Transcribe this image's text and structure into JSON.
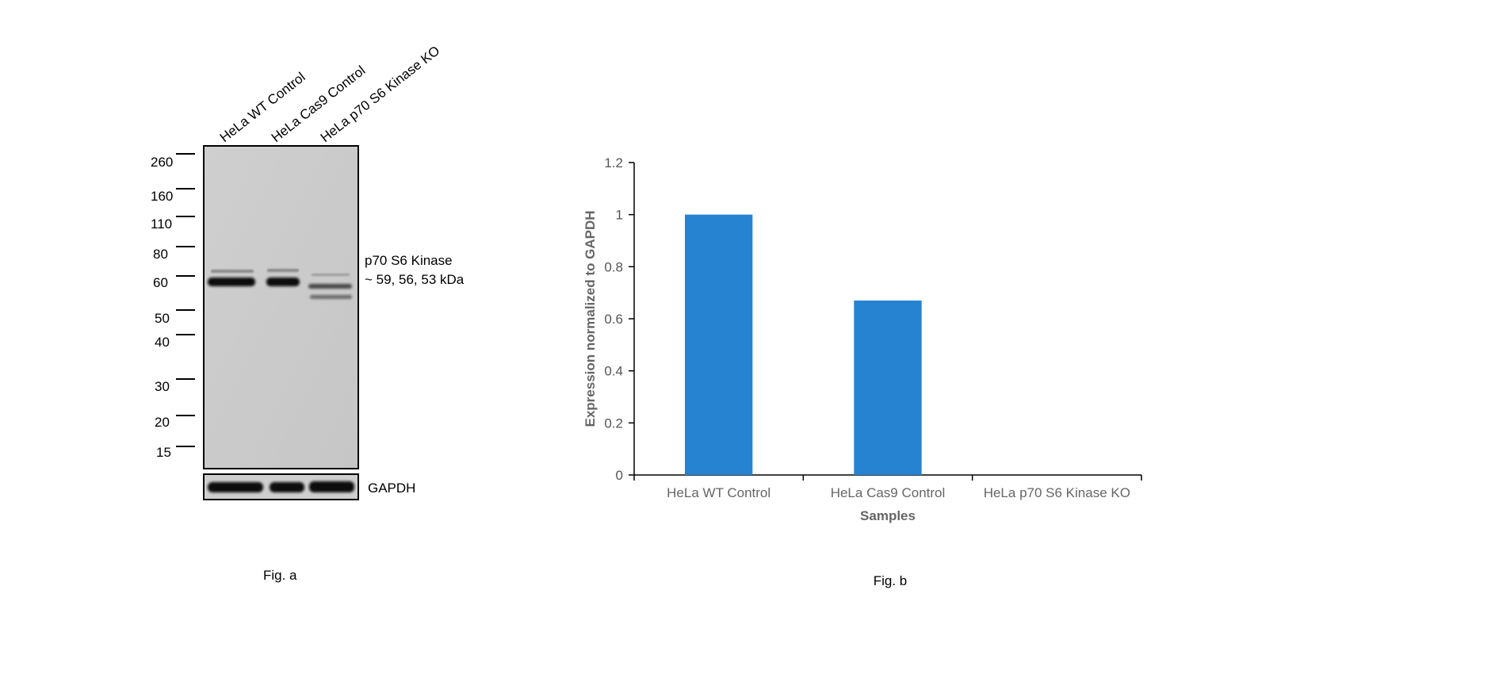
{
  "blot": {
    "lanes": [
      "HeLa WT Control",
      "HeLa Cas9 Control",
      "HeLa p70 S6 Kinase KO"
    ],
    "markers": [
      "260",
      "160",
      "110",
      "80",
      "60",
      "50",
      "40",
      "30",
      "20",
      "15"
    ],
    "band_label_line1": "p70 S6 Kinase",
    "band_label_line2": "~ 59, 56, 53 kDa",
    "loading_control": "GAPDH",
    "caption": "Fig. a"
  },
  "chart_data": {
    "type": "bar",
    "categories": [
      "HeLa WT Control",
      "HeLa Cas9 Control",
      "HeLa p70 S6 Kinase KO"
    ],
    "values": [
      1.0,
      0.67,
      0
    ],
    "xlabel": "Samples",
    "ylabel": "Expression normalized to GAPDH",
    "ylim": [
      0,
      1.2
    ],
    "yticks": [
      0,
      0.2,
      0.4,
      0.6,
      0.8,
      1,
      1.2
    ],
    "ytick_labels": [
      "0",
      "0.2",
      "0.4",
      "0.6",
      "0.8",
      "1",
      "1.2"
    ],
    "bar_color": "#2683d2",
    "grid": false,
    "caption": "Fig. b"
  }
}
